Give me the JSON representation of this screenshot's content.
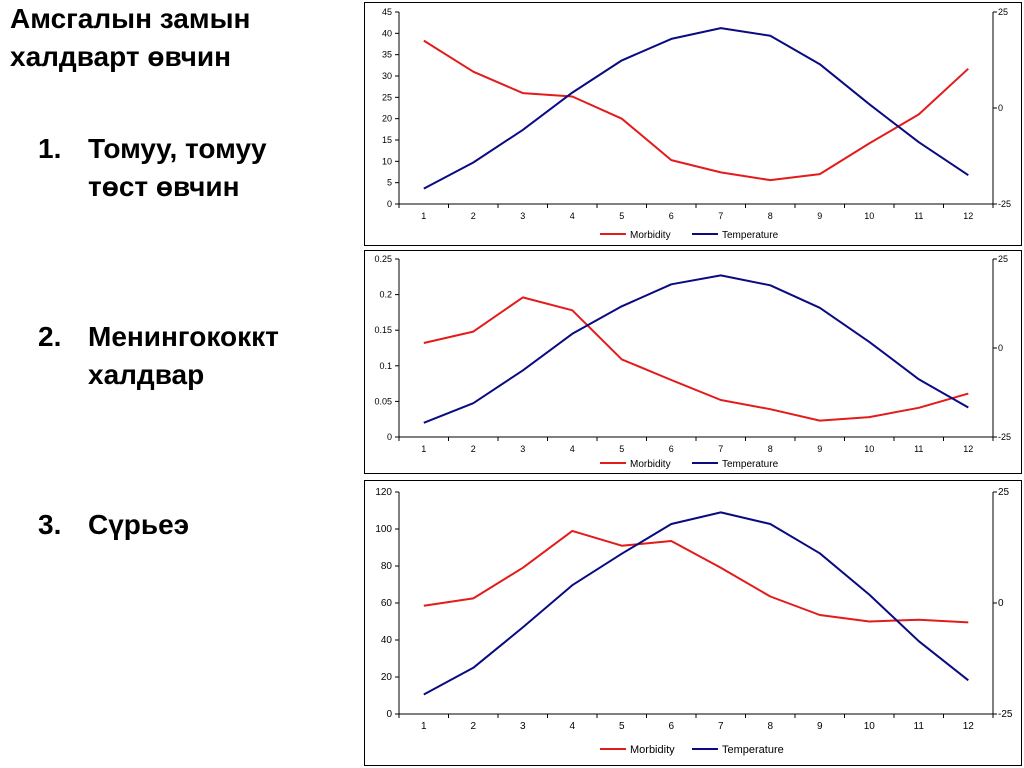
{
  "title": "Амсгалын замын халдварт өвчин",
  "list": [
    {
      "num": "1.",
      "text": "Томуу, томуу төст өвчин"
    },
    {
      "num": "2.",
      "text": "Менингококкт халдвар"
    },
    {
      "num": "3.",
      "text": "Сүрьеэ"
    }
  ],
  "colors": {
    "morbidity": "#e31b1b",
    "temperature": "#0a0a82"
  },
  "chart_data": [
    {
      "type": "line",
      "categories": [
        "1",
        "2",
        "3",
        "4",
        "5",
        "6",
        "7",
        "8",
        "9",
        "10",
        "11",
        "12"
      ],
      "ylim": [
        0,
        45
      ],
      "yticks": [
        "0",
        "5",
        "10",
        "15",
        "20",
        "25",
        "30",
        "35",
        "40",
        "45"
      ],
      "y2lim": [
        -25,
        25
      ],
      "y2ticks": [
        "-25",
        "0",
        "25"
      ],
      "legend": "bottom-center",
      "series": [
        {
          "name": "Morbidity",
          "axis": "left",
          "values": [
            38.3,
            31,
            26,
            25.2,
            20,
            10.3,
            7.4,
            5.6,
            7,
            14.2,
            21,
            31.7
          ]
        },
        {
          "name": "Temperature",
          "axis": "right",
          "values": [
            -21,
            -14.2,
            -5.7,
            4,
            12.4,
            18,
            20.8,
            18.8,
            11.4,
            1,
            -8.9,
            -17.5
          ]
        }
      ]
    },
    {
      "type": "line",
      "categories": [
        "1",
        "2",
        "3",
        "4",
        "5",
        "6",
        "7",
        "8",
        "9",
        "10",
        "11",
        "12"
      ],
      "ylim": [
        0,
        0.25
      ],
      "yticks": [
        "0",
        "0.05",
        "0.1",
        "0.15",
        "0.2",
        "0.25"
      ],
      "y2lim": [
        -25,
        25
      ],
      "y2ticks": [
        "-25",
        "0",
        "25"
      ],
      "legend": "bottom-center",
      "series": [
        {
          "name": "Morbidity",
          "axis": "left",
          "values": [
            0.132,
            0.148,
            0.196,
            0.178,
            0.109,
            0.08,
            0.052,
            0.039,
            0.023,
            0.028,
            0.041,
            0.061
          ]
        },
        {
          "name": "Temperature",
          "axis": "right",
          "values": [
            -21,
            -15.5,
            -6.3,
            4,
            11.7,
            17.9,
            20.4,
            17.6,
            11.3,
            1.7,
            -8.8,
            -16.7
          ]
        }
      ]
    },
    {
      "type": "line",
      "categories": [
        "1",
        "2",
        "3",
        "4",
        "5",
        "6",
        "7",
        "8",
        "9",
        "10",
        "11",
        "12"
      ],
      "ylim": [
        0,
        120
      ],
      "yticks": [
        "0",
        "20",
        "40",
        "60",
        "80",
        "100",
        "120"
      ],
      "y2lim": [
        -25,
        25
      ],
      "y2ticks": [
        "-25",
        "0",
        "25"
      ],
      "legend": "bottom-center",
      "series": [
        {
          "name": "Morbidity",
          "axis": "left",
          "values": [
            58.5,
            62.5,
            79,
            99,
            91,
            93.5,
            79,
            63.5,
            53.5,
            50,
            51,
            49.5
          ]
        },
        {
          "name": "Temperature",
          "axis": "right",
          "values": [
            -20.6,
            -14.6,
            -5.5,
            4,
            11.1,
            17.8,
            20.4,
            17.8,
            11.2,
            1.9,
            -8.6,
            -17.4
          ]
        }
      ]
    }
  ]
}
